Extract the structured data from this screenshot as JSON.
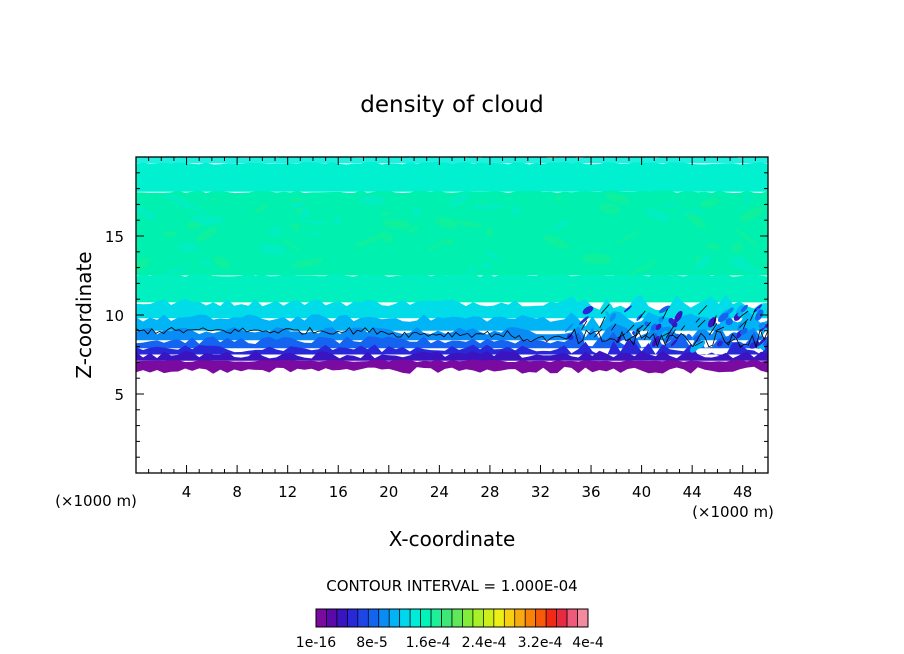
{
  "chart_data": {
    "type": "heatmap",
    "title": "density of cloud",
    "xlabel": "X-coordinate",
    "ylabel": "Z-coordinate",
    "x_unit": "(×1000 m)",
    "xlim": [
      0,
      50
    ],
    "ylim": [
      0,
      20
    ],
    "x_ticks": [
      4,
      8,
      12,
      16,
      20,
      24,
      28,
      32,
      36,
      40,
      44,
      48
    ],
    "y_ticks": [
      5,
      10,
      15
    ],
    "contour_interval_label": "CONTOUR INTERVAL = 1.000E-04",
    "colorbar": {
      "colors": [
        "#7a0aa0",
        "#5a0aaa",
        "#3a14c0",
        "#2828d8",
        "#1e46e6",
        "#1464f0",
        "#0a8cf5",
        "#00b4f5",
        "#00d6ec",
        "#00ecd8",
        "#00f5b8",
        "#1ef09a",
        "#3ee878",
        "#5ee85a",
        "#82ec3a",
        "#a8f028",
        "#cef01a",
        "#ecf014",
        "#f8d010",
        "#f8aa10",
        "#f8820a",
        "#f85a0a",
        "#f02a14",
        "#e82a40",
        "#f05a7a",
        "#f48aa0"
      ],
      "tick_labels": [
        "1e-16",
        "8e-5",
        "1.6e-4",
        "2.4e-4",
        "3.2e-4",
        "4e-4"
      ]
    },
    "layers": [
      {
        "z_range": [
          19.6,
          20.0
        ],
        "color": "#20f0e0"
      },
      {
        "z_range": [
          17.8,
          19.6
        ],
        "color": "#00f0d0"
      },
      {
        "z_range": [
          12.5,
          17.8
        ],
        "color": "#00f0b0"
      },
      {
        "z_range": [
          10.8,
          12.5
        ],
        "color": "#00f0c0"
      },
      {
        "z_range": [
          9.8,
          10.8
        ],
        "color": "#00dce8"
      },
      {
        "z_range": [
          9.0,
          9.8
        ],
        "color": "#00b4f5"
      },
      {
        "z_range": [
          8.4,
          9.0
        ],
        "color": "#0a8cf5"
      },
      {
        "z_range": [
          7.9,
          8.4
        ],
        "color": "#1464f0"
      },
      {
        "z_range": [
          7.5,
          7.9
        ],
        "color": "#2828d8"
      },
      {
        "z_range": [
          7.1,
          7.5
        ],
        "color": "#3a14c0"
      },
      {
        "z_range": [
          6.5,
          7.1
        ],
        "color": "#7a0aa0"
      }
    ]
  }
}
